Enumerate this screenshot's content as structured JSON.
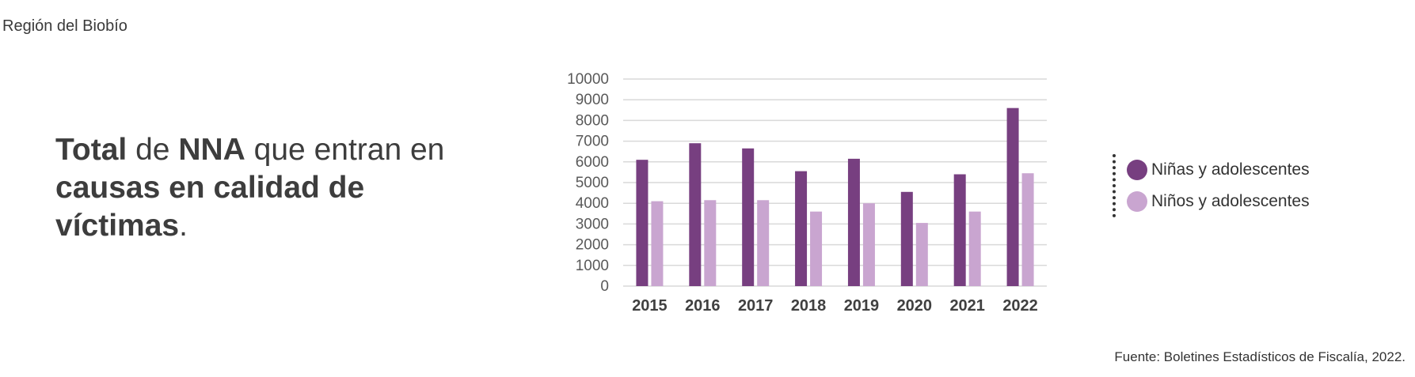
{
  "header": {
    "region": "Región del Biobío"
  },
  "headline": {
    "part1_bold": "Total",
    "part2": " de ",
    "part3_bold": "NNA",
    "part4": " que entran en ",
    "part5_bold": "causas en calidad de víctimas",
    "part6": "."
  },
  "source": "Fuente: Boletines Estadísticos de Fiscalía, 2022.",
  "colors": {
    "series1": "#773f80",
    "series2": "#c9a5d0",
    "grid": "#d9d9d9",
    "axis_text": "#595959",
    "xtick_text": "#404040"
  },
  "chart_data": {
    "type": "bar",
    "categories": [
      "2015",
      "2016",
      "2017",
      "2018",
      "2019",
      "2020",
      "2021",
      "2022"
    ],
    "series": [
      {
        "name": "Niñas y adolescentes",
        "values": [
          6100,
          6900,
          6650,
          5550,
          6150,
          4550,
          5400,
          8600
        ]
      },
      {
        "name": "Niños y adolescentes",
        "values": [
          4100,
          4150,
          4150,
          3600,
          4000,
          3050,
          3600,
          5450
        ]
      }
    ],
    "ylim": [
      0,
      10000
    ],
    "yticks": [
      "0",
      "1000",
      "2000",
      "3000",
      "4000",
      "5000",
      "6000",
      "7000",
      "8000",
      "9000",
      "10000"
    ],
    "grid": true,
    "legend_position": "right"
  }
}
